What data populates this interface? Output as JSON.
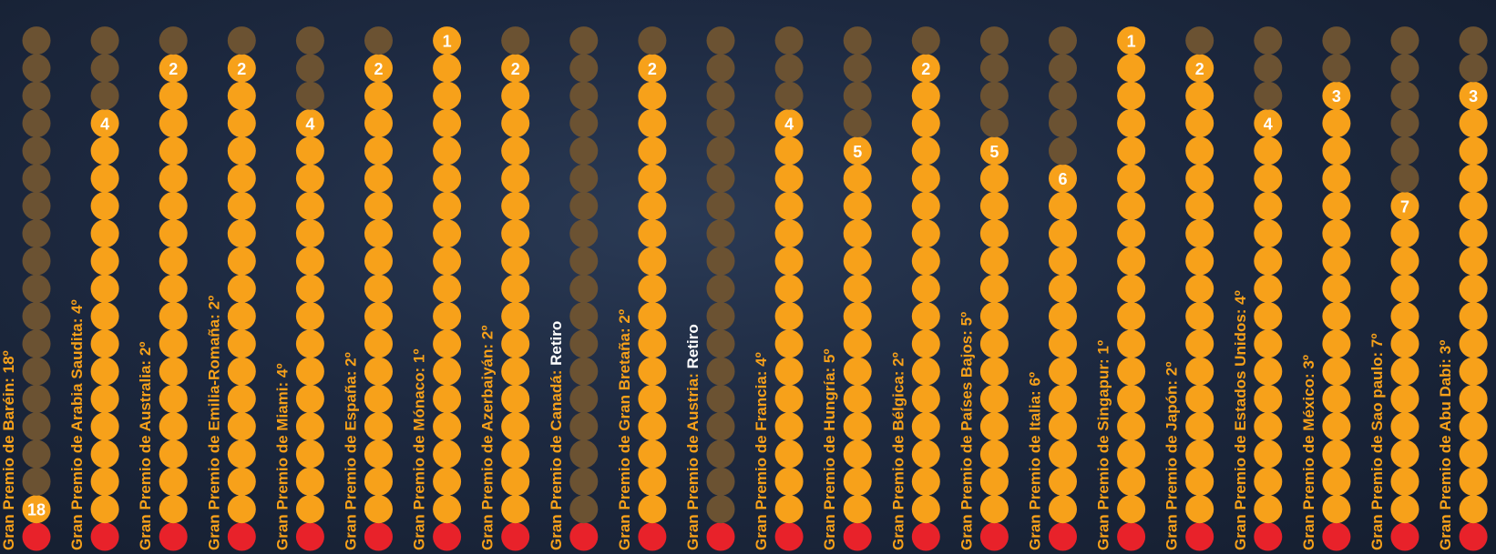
{
  "colors": {
    "filled": "#f7a11a",
    "empty": "#6b5232",
    "base": "#e8222a",
    "label": "#f7a11a",
    "value_highlight": "#ffffff",
    "number": "#ffffff"
  },
  "chart_data": {
    "type": "dot-column",
    "positions_per_column": 18,
    "ylim": [
      1,
      18
    ],
    "races": [
      {
        "label": "Gran Premio de Baréin:",
        "result": "18º",
        "position": 18
      },
      {
        "label": "Gran Premio de Arabia Saudita:",
        "result": "4º",
        "position": 4
      },
      {
        "label": "Gran Premio de Australia:",
        "result": "2º",
        "position": 2
      },
      {
        "label": "Gran Premio de Emilia-Romaña:",
        "result": "2º",
        "position": 2
      },
      {
        "label": "Gran Premio de Miami:",
        "result": "4º",
        "position": 4
      },
      {
        "label": "Gran Premio de España:",
        "result": "2º",
        "position": 2
      },
      {
        "label": "Gran Premio de Mónaco:",
        "result": "1º",
        "position": 1
      },
      {
        "label": "Gran Premio de Azerbaiyán:",
        "result": "2º",
        "position": 2
      },
      {
        "label": "Gran Premio de Canadá:",
        "result": "Retiro",
        "position": null
      },
      {
        "label": "Gran Premio de Gran Bretaña:",
        "result": "2º",
        "position": 2
      },
      {
        "label": "Gran Premio de Austria:",
        "result": "Retiro",
        "position": null
      },
      {
        "label": "Gran Premio de Francia:",
        "result": "4º",
        "position": 4
      },
      {
        "label": "Gran Premio de Hungría:",
        "result": "5º",
        "position": 5
      },
      {
        "label": "Gran Premio de Bélgica:",
        "result": "2º",
        "position": 2
      },
      {
        "label": "Gran Premio de Países Bajos:",
        "result": "5º",
        "position": 5
      },
      {
        "label": "Gran Premio de Italia:",
        "result": "6º",
        "position": 6
      },
      {
        "label": "Gran Premio de Singapur:",
        "result": "1º",
        "position": 1
      },
      {
        "label": "Gran Premio de Japón:",
        "result": "2º",
        "position": 2
      },
      {
        "label": "Gran Premio de Estados Unidos:",
        "result": "4º",
        "position": 4
      },
      {
        "label": "Gran Premio de México:",
        "result": "3º",
        "position": 3
      },
      {
        "label": "Gran Premio de Sao paulo:",
        "result": "7º",
        "position": 7
      },
      {
        "label": "Gran Premio de Abu Dabi:",
        "result": "3º",
        "position": 3
      }
    ]
  }
}
